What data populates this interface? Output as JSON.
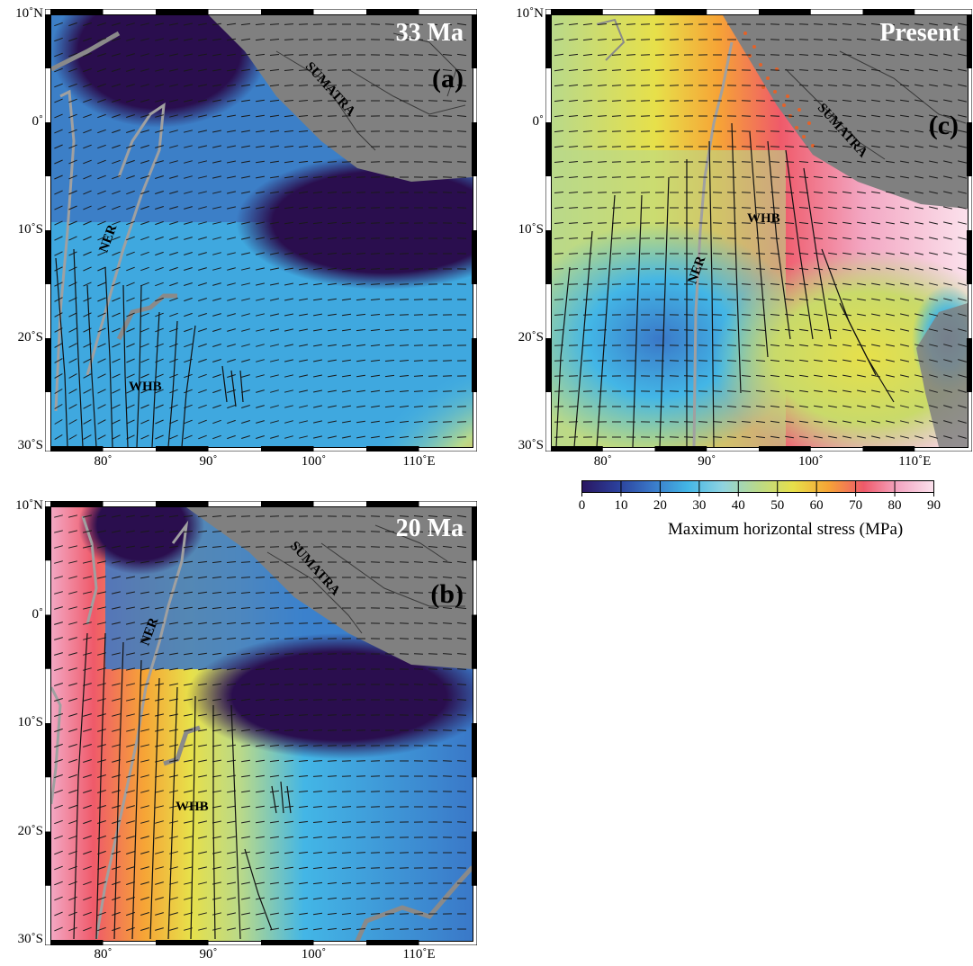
{
  "panels": [
    {
      "id": "a",
      "age": "33 Ma",
      "letter": "(a)",
      "labels": {
        "sumatra": "SUMATRA",
        "ridge": "NER",
        "basin": "WHB"
      }
    },
    {
      "id": "b",
      "age": "20 Ma",
      "letter": "(b)",
      "labels": {
        "sumatra": "SUMATRA",
        "ridge": "NER",
        "basin": "WHB"
      }
    },
    {
      "id": "c",
      "age": "Present",
      "letter": "(c)",
      "labels": {
        "sumatra": "SUMATRA",
        "ridge": "NER",
        "basin": "WHB"
      }
    }
  ],
  "axes": {
    "lat_ticks": [
      "10˚N",
      "0˚",
      "10˚S",
      "20˚S",
      "30˚S"
    ],
    "lon_ticks": [
      "80˚",
      "90˚",
      "100˚",
      "110˚E"
    ],
    "lat_range": [
      -30,
      10
    ],
    "lon_range": [
      75,
      115
    ]
  },
  "colorbar": {
    "title": "Maximum horizontal stress (MPa)",
    "ticks": [
      "0",
      "10",
      "20",
      "30",
      "40",
      "50",
      "60",
      "70",
      "80",
      "90"
    ],
    "range": [
      0,
      90
    ],
    "colors": [
      "#2a1660",
      "#2b3f9a",
      "#3a78c8",
      "#43b6e6",
      "#8fd3e0",
      "#b9d98a",
      "#e7e04a",
      "#f6a436",
      "#ef5a6a",
      "#f3a7c3",
      "#fbe1ec"
    ]
  },
  "colors": {
    "land": "#808080",
    "coast": "#3a3a3a",
    "ridge_outline": "#a0a0a0",
    "plate_boundary": "#8a8a8a",
    "stress_marks": "#1a1a1a",
    "earthquakes": "#e2622a"
  }
}
